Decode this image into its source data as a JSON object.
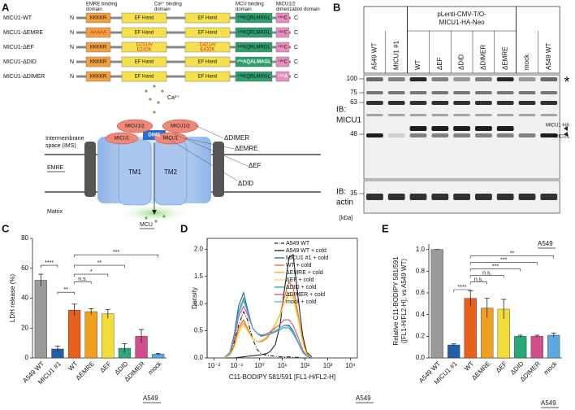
{
  "panel_labels": [
    "A",
    "B",
    "C",
    "D",
    "E"
  ],
  "domains": {
    "headers": [
      [
        "EMRE binding",
        "domain"
      ],
      [
        "Ca²⁺ binding",
        "domain"
      ],
      [
        "MCU binding",
        "domain"
      ],
      [
        "MICU1/2",
        "dimerization domain"
      ]
    ],
    "n_label": "N",
    "c_label": "C",
    "rows": [
      {
        "name": "MICU1-WT",
        "boxes": [
          "KKKKR",
          "EF Hand",
          "EF Hand",
          "⁴³⁸KQRLMRGL",
          "⁴⁶⁵C"
        ]
      },
      {
        "name": "MICU1-ΔEMRE",
        "boxes": [
          "AAAAA",
          "EF Hand",
          "EF Hand",
          "⁴³⁸KQRLMRGL",
          "⁴⁶⁵C"
        ]
      },
      {
        "name": "MICU1-ΔEF",
        "boxes": [
          "KKKKR",
          [
            "D231A/",
            "E242K"
          ],
          [
            "D421A/",
            "E432K"
          ],
          "⁴³⁸KQRLMRGL",
          "⁴⁶⁵C"
        ]
      },
      {
        "name": "MICU1-ΔDID",
        "boxes": [
          "KKKKR",
          "EF Hand",
          "EF Hand",
          "⁴³⁸AQALMAGL",
          "⁴⁶⁵C"
        ]
      },
      {
        "name": "MICU1-ΔDIMER",
        "boxes": [
          "KKKKR",
          "EF Hand",
          "EF Hand",
          "⁴³⁸KQRLMRGL",
          "⁴⁶⁵A"
        ]
      }
    ]
  },
  "diagram": {
    "ca": "Ca²⁺",
    "ims": [
      "Intermembrane",
      "space (IMS)"
    ],
    "micu12": "MICU1/2",
    "micu1": "MICU1",
    "dimer": "ΔDIMER",
    "emre_mut": "ΔEMRE",
    "emre": "EMRE",
    "dime": "DIME",
    "tm1": "TM1",
    "tm2": "TM2",
    "ef": "ΔEF",
    "did": "ΔDID",
    "matrix": "Matrix",
    "mcu": "MCU"
  },
  "blot": {
    "construct": [
      "pLenti-CMV-T/O-",
      "MICU1-HA-Neo"
    ],
    "lanes": [
      "A549 WT",
      "MICU1 #1",
      "WT",
      "ΔEF",
      "ΔDID",
      "ΔDIMER",
      "ΔEMRE",
      "mock",
      "A549 WT"
    ],
    "ib1": [
      "IB:",
      "MICU1"
    ],
    "ib2": [
      "IB:",
      "actin"
    ],
    "markers": [
      100,
      75,
      63,
      48,
      35
    ],
    "unit": "[kDa]",
    "bands": [
      "MICU1-HA",
      "MICU1"
    ],
    "asterisk": "*",
    "cell_line": "A549"
  },
  "chart_data": [
    {
      "type": "bar",
      "ylabel": "LDH release (%)",
      "categories": [
        "A549 WT",
        "MICU1 #1",
        "WT",
        "ΔEMRE",
        "ΔEF",
        "ΔDID",
        "ΔDIMER",
        "mock"
      ],
      "values": [
        52,
        6,
        32,
        31,
        29.5,
        6.5,
        14.5,
        2.5
      ],
      "errors": [
        4,
        2,
        4,
        2,
        3,
        3,
        4.5,
        0.5
      ],
      "colors": [
        "#9a9a9a",
        "#1f5fa8",
        "#e8601c",
        "#f0a020",
        "#f2dc3a",
        "#2aa87a",
        "#d24d8e",
        "#5aa9e0"
      ],
      "ylim": [
        0,
        80
      ],
      "yticks": [
        0,
        20,
        40,
        60,
        80
      ],
      "annotations": [
        "****",
        "**",
        "n.s.",
        "*",
        "**",
        "***"
      ],
      "cell_line": "A549"
    },
    {
      "type": "line",
      "xscale": "log",
      "xlabel": "C11-BODIPY 581/591 [FL1-H/FL2-H]",
      "ylabel": "Density",
      "x": [
        0.03,
        0.05,
        0.08,
        0.12,
        0.2,
        0.3,
        0.5,
        0.8,
        1.2,
        2,
        3,
        5,
        8,
        12,
        20,
        30,
        50,
        80,
        120,
        200
      ],
      "series": [
        {
          "name": "A549 WT",
          "color": "#222222",
          "style": "dashdot",
          "values": [
            0.02,
            0.08,
            0.3,
            0.6,
            0.85,
            0.7,
            0.35,
            0.15,
            0.08,
            0.05,
            0.04,
            0.03,
            0.02,
            0.02,
            0.02,
            0.01,
            0.01,
            0,
            0,
            0
          ]
        },
        {
          "name": "A549 WT + cold",
          "color": "#222222",
          "style": "solid",
          "values": [
            0,
            0,
            0,
            0.01,
            0.02,
            0.03,
            0.04,
            0.05,
            0.06,
            0.08,
            0.12,
            0.25,
            0.6,
            1.2,
            1.85,
            1.9,
            1.1,
            0.4,
            0.1,
            0.02
          ]
        },
        {
          "name": "MICU1 #1 + cold",
          "color": "#1f5fa8",
          "style": "solid",
          "values": [
            0.02,
            0.1,
            0.45,
            0.95,
            1.2,
            0.9,
            0.55,
            0.45,
            0.4,
            0.42,
            0.45,
            0.5,
            0.55,
            0.6,
            0.6,
            0.5,
            0.3,
            0.12,
            0.04,
            0.01
          ]
        },
        {
          "name": "WT + cold",
          "color": "#e8601c",
          "style": "solid",
          "values": [
            0.01,
            0.05,
            0.25,
            0.55,
            0.7,
            0.55,
            0.35,
            0.3,
            0.3,
            0.35,
            0.45,
            0.6,
            0.8,
            1.1,
            1.4,
            1.3,
            0.8,
            0.3,
            0.08,
            0.01
          ]
        },
        {
          "name": "ΔEMRE + cold",
          "color": "#f0a020",
          "style": "solid",
          "values": [
            0.01,
            0.04,
            0.2,
            0.5,
            0.65,
            0.5,
            0.35,
            0.3,
            0.32,
            0.38,
            0.48,
            0.62,
            0.8,
            1.0,
            1.2,
            1.15,
            0.75,
            0.28,
            0.07,
            0.01
          ]
        },
        {
          "name": "ΔEF + cold",
          "color": "#f2dc3a",
          "style": "solid",
          "values": [
            0.01,
            0.04,
            0.2,
            0.45,
            0.6,
            0.5,
            0.35,
            0.3,
            0.32,
            0.38,
            0.48,
            0.6,
            0.78,
            1.0,
            1.15,
            1.1,
            0.7,
            0.26,
            0.06,
            0.01
          ]
        },
        {
          "name": "ΔDID + cold",
          "color": "#2aa87a",
          "style": "solid",
          "values": [
            0.02,
            0.09,
            0.4,
            0.85,
            1.1,
            0.85,
            0.55,
            0.45,
            0.42,
            0.42,
            0.44,
            0.48,
            0.52,
            0.56,
            0.55,
            0.45,
            0.28,
            0.1,
            0.03,
            0.01
          ]
        },
        {
          "name": "ΔDIMER + cold",
          "color": "#d24d8e",
          "style": "solid",
          "values": [
            0.02,
            0.08,
            0.35,
            0.75,
            0.95,
            0.8,
            0.55,
            0.45,
            0.42,
            0.44,
            0.48,
            0.55,
            0.62,
            0.7,
            0.7,
            0.6,
            0.38,
            0.14,
            0.04,
            0.01
          ]
        },
        {
          "name": "mock + cold",
          "color": "#5aa9e0",
          "style": "solid",
          "values": [
            0.02,
            0.09,
            0.4,
            0.8,
            1.05,
            0.85,
            0.55,
            0.45,
            0.42,
            0.42,
            0.45,
            0.5,
            0.55,
            0.6,
            0.58,
            0.48,
            0.3,
            0.11,
            0.03,
            0.01
          ]
        }
      ],
      "xlim": [
        0.005,
        20000
      ],
      "xticks": [
        {
          "value": 0.01,
          "label": "10⁻²"
        },
        {
          "value": 0.1,
          "label": "10⁻¹"
        },
        {
          "value": 1,
          "label": "10⁰"
        },
        {
          "value": 10,
          "label": "10¹"
        },
        {
          "value": 100,
          "label": "10²"
        },
        {
          "value": 1000,
          "label": "10³"
        },
        {
          "value": 10000,
          "label": "10⁴"
        }
      ],
      "ylim": [
        0,
        2.2
      ],
      "yticks": [
        {
          "value": 0,
          "label": "0.0"
        },
        0.5,
        {
          "value": 1,
          "label": "1.0"
        },
        1.5,
        {
          "value": 2,
          "label": "2.0"
        }
      ],
      "cell_line": "A549"
    },
    {
      "type": "bar",
      "ylabel": [
        "Relative C11-BODIPY 581/591",
        "([FL1-H/FL2-H], vs A549 WT)"
      ],
      "categories": [
        "A549 WT",
        "MICU1 #1",
        "WT",
        "ΔEMRE",
        "ΔEF",
        "ΔDID",
        "ΔDIMER",
        "mock"
      ],
      "values": [
        1,
        0.12,
        0.55,
        0.46,
        0.45,
        0.2,
        0.2,
        0.21
      ],
      "errors": [
        0,
        0.01,
        0.07,
        0.09,
        0.09,
        0.01,
        0.01,
        0.02
      ],
      "colors": [
        "#9a9a9a",
        "#1f5fa8",
        "#e8601c",
        "#f0a020",
        "#f2dc3a",
        "#2aa87a",
        "#d24d8e",
        "#5aa9e0"
      ],
      "ylim": [
        0,
        1.05
      ],
      "yticks": [
        {
          "value": 0,
          "label": "0.0"
        },
        0.2,
        0.4,
        0.6,
        0.8,
        {
          "value": 1,
          "label": "1.0"
        }
      ],
      "annotations": [
        "****",
        "n.s.",
        "n.s.",
        "***",
        "***",
        "**"
      ],
      "cell_line": "A549"
    }
  ]
}
